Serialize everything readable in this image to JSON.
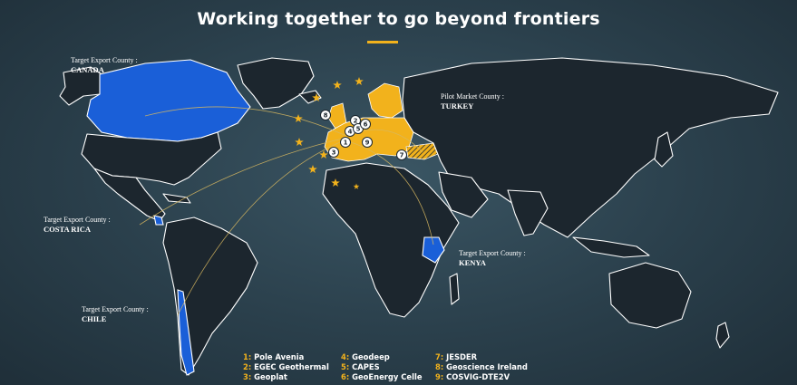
{
  "title": "Working together to go beyond frontiers",
  "colors": {
    "accent": "#f2b21c",
    "target": "#1a5fd8",
    "land": "#1c262e",
    "ocean": "#2e4652"
  },
  "callouts": [
    {
      "id": "canada",
      "caption": "Target Export County :",
      "name": "CANADA"
    },
    {
      "id": "costa-rica",
      "caption": "Target Export County :",
      "name": "COSTA RICA"
    },
    {
      "id": "chile",
      "caption": "Target Export County :",
      "name": "CHILE"
    },
    {
      "id": "turkey",
      "caption": "Pilot Market County :",
      "name": "TURKEY"
    },
    {
      "id": "kenya",
      "caption": "Target Export County :",
      "name": "KENYA"
    }
  ],
  "markers": [
    "1",
    "2",
    "3",
    "4",
    "5",
    "6",
    "7",
    "8",
    "9"
  ],
  "legend": [
    {
      "num": "1:",
      "label": "Pole Avenia"
    },
    {
      "num": "2:",
      "label": "EGEC Geothermal"
    },
    {
      "num": "3:",
      "label": "Geoplat"
    },
    {
      "num": "4:",
      "label": "Geodeep"
    },
    {
      "num": "5:",
      "label": "CAPES"
    },
    {
      "num": "6:",
      "label": "GeoEnergy Celle"
    },
    {
      "num": "7:",
      "label": "JESDER"
    },
    {
      "num": "8:",
      "label": "Geoscience Ireland"
    },
    {
      "num": "9:",
      "label": "COSVIG-DTE2V"
    }
  ]
}
